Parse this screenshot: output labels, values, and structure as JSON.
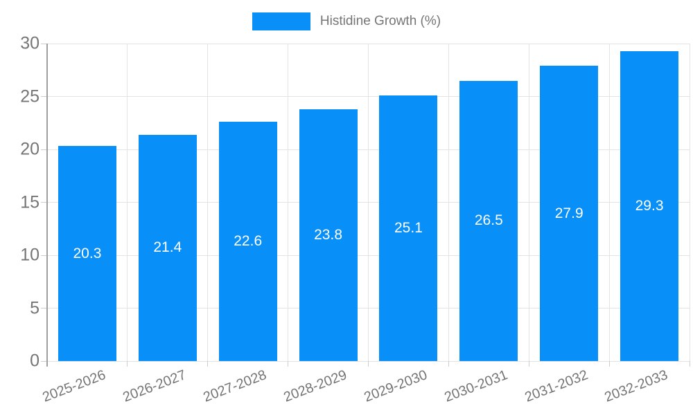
{
  "legend": {
    "label": "Histidine Growth (%)"
  },
  "chart_data": {
    "type": "bar",
    "title": "",
    "categories": [
      "2025-2026",
      "2026-2027",
      "2027-2028",
      "2028-2029",
      "2029-2030",
      "2030-2031",
      "2031-2032",
      "2032-2033"
    ],
    "series": [
      {
        "name": "Histidine Growth (%)",
        "values": [
          20.3,
          21.4,
          22.6,
          23.8,
          25.1,
          26.5,
          27.9,
          29.3
        ]
      }
    ],
    "value_labels": [
      "20.3",
      "21.4",
      "22.6",
      "23.8",
      "25.1",
      "26.5",
      "27.9",
      "29.3"
    ],
    "xlabel": "",
    "ylabel": "",
    "ylim": [
      0,
      30
    ],
    "yticks": [
      0,
      5,
      10,
      15,
      20,
      25,
      30
    ],
    "grid": true,
    "legend_position": "top-center",
    "value_label_position": "inside-middle",
    "x_label_rotation_deg": -21
  },
  "colors": {
    "bar": "#0990f8",
    "axis_line": "#9e9e9e",
    "gridline": "#e3e3e3",
    "tick": "#cccccc",
    "label_text": "#757575",
    "value_label_text": "#ffffff",
    "background": "#ffffff"
  }
}
